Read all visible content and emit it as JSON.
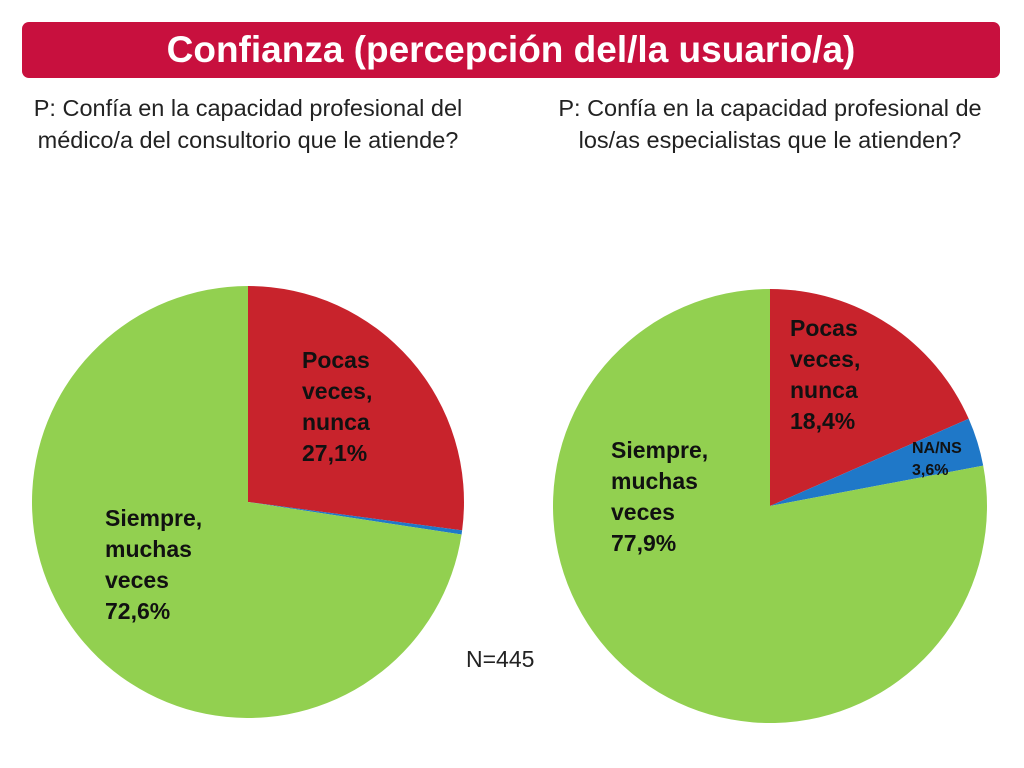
{
  "header": {
    "title": "Confianza (percepción del/la usuario/a)"
  },
  "questions": {
    "left": "P: Confía en la capacidad profesional del médico/a del consultorio que le atiende?",
    "right": "P: Confía en la capacidad profesional de los/as especialistas que le atienden?"
  },
  "footer": {
    "n_label": "N=445"
  },
  "colors": {
    "title_bg": "#c8103e",
    "pocas": "#c8232c",
    "nans": "#1f78c8",
    "siempre": "#92d050"
  },
  "chart_data": [
    {
      "type": "pie",
      "title": "P: Confía en la capacidad profesional del médico/a del consultorio que le atiende?",
      "slices": [
        {
          "label_lines": [
            "Pocas",
            "veces,",
            "nunca",
            "27,1%"
          ],
          "value": 27.1,
          "color": "#c8232c"
        },
        {
          "label_lines": [],
          "value": 0.3,
          "color": "#1f78c8"
        },
        {
          "label_lines": [
            "Siempre,",
            "muchas",
            "veces",
            "72,6%"
          ],
          "value": 72.6,
          "color": "#92d050"
        }
      ]
    },
    {
      "type": "pie",
      "title": "P: Confía en la capacidad profesional de los/as especialistas que le atienden?",
      "slices": [
        {
          "label_lines": [
            "Pocas",
            "veces,",
            "nunca",
            "18,4%"
          ],
          "value": 18.4,
          "color": "#c8232c"
        },
        {
          "label_lines": [
            "NA/NS",
            "3,6%"
          ],
          "value": 3.6,
          "color": "#1f78c8"
        },
        {
          "label_lines": [
            "Siempre,",
            "muchas",
            "veces",
            "77,9%"
          ],
          "value": 77.9,
          "color": "#92d050"
        }
      ]
    }
  ]
}
